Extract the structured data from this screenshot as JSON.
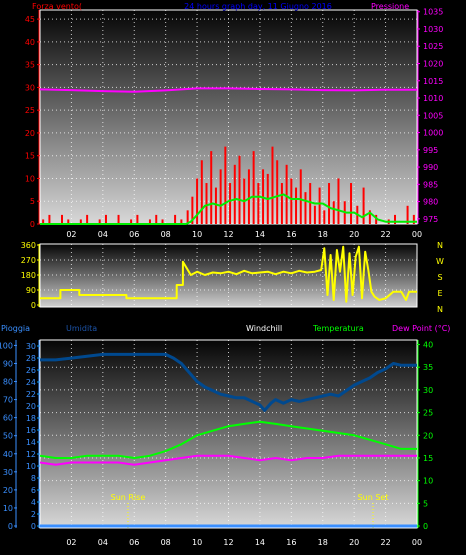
{
  "colors": {
    "wind": "#ff0000",
    "gust": "#ff0000",
    "wind_avg": "#00ee00",
    "pressure": "#ff00ff",
    "direction": "#ffff00",
    "rain": "#3a8fff",
    "humidity": "#00498f",
    "windchill": "#ffffff",
    "temperature": "#00ff00",
    "dewpoint": "#ff00ff",
    "time_label": "#ffff00",
    "grid": "#ffffff"
  },
  "chart_data": [
    {
      "type": "line",
      "title": "24 hours graph day, 11 Giugno 2016",
      "left_label": "Forza vento(",
      "right_label": "Pressione",
      "x_ticks": [
        "02",
        "04",
        "06",
        "08",
        "10",
        "12",
        "14",
        "16",
        "18",
        "20",
        "22",
        "00"
      ],
      "xlim": [
        0,
        24
      ],
      "y_left_ticks": [
        "0",
        "5",
        "10",
        "15",
        "20",
        "25",
        "30",
        "35",
        "40",
        "45"
      ],
      "y_left_lim": [
        0,
        47
      ],
      "y_right_ticks": [
        "975",
        "980",
        "985",
        "990",
        "995",
        "1000",
        "1005",
        "1010",
        "1015",
        "1020",
        "1025",
        "1030",
        "1035"
      ],
      "y_right_lim": [
        973.5,
        1035.5
      ],
      "series": [
        {
          "key": "gust",
          "axis": "left",
          "style": "bars",
          "x": [
            0.2,
            0.6,
            1.0,
            1.4,
            1.8,
            2.2,
            2.6,
            3.0,
            3.4,
            3.8,
            4.2,
            4.6,
            5.0,
            5.4,
            5.8,
            6.2,
            6.6,
            7.0,
            7.4,
            7.8,
            8.2,
            8.6,
            9.0,
            9.4,
            9.7,
            10.0,
            10.3,
            10.6,
            10.9,
            11.2,
            11.5,
            11.8,
            12.1,
            12.4,
            12.7,
            13.0,
            13.3,
            13.6,
            13.9,
            14.2,
            14.5,
            14.8,
            15.1,
            15.4,
            15.7,
            16.0,
            16.3,
            16.6,
            16.9,
            17.2,
            17.5,
            17.8,
            18.1,
            18.4,
            18.7,
            19.0,
            19.4,
            19.8,
            20.2,
            20.6,
            21.0,
            21.4,
            21.8,
            22.2,
            22.6,
            23.0,
            23.4,
            23.8
          ],
          "values": [
            1,
            2,
            0,
            2,
            1,
            0,
            1,
            2,
            0,
            1,
            2,
            0,
            2,
            0,
            1,
            2,
            0,
            1,
            2,
            1,
            0,
            2,
            1,
            3,
            6,
            10,
            14,
            9,
            16,
            8,
            12,
            17,
            9,
            13,
            15,
            10,
            12,
            16,
            9,
            12,
            11,
            17,
            14,
            9,
            13,
            10,
            8,
            12,
            7,
            9,
            4,
            8,
            3,
            9,
            5,
            10,
            5,
            9,
            4,
            8,
            3,
            2,
            0,
            1,
            2,
            0,
            4,
            2
          ]
        },
        {
          "key": "wind_avg",
          "axis": "left",
          "style": "line",
          "x": [
            0,
            9.3,
            9.6,
            10.0,
            10.5,
            11.0,
            11.5,
            12.0,
            12.5,
            13.0,
            13.5,
            14.0,
            14.5,
            15.0,
            15.5,
            16.0,
            16.5,
            17.0,
            17.5,
            18.0,
            18.5,
            19.0,
            19.5,
            20.0,
            20.5,
            21.0,
            21.5,
            22.0,
            24
          ],
          "values": [
            0,
            0,
            0.5,
            2,
            4,
            4.5,
            4,
            5,
            5.5,
            5,
            6,
            6,
            5.5,
            6,
            6.5,
            5.5,
            5.5,
            5,
            4.5,
            4.5,
            3.5,
            3,
            2.5,
            2.5,
            1.5,
            2.5,
            1,
            0.5,
            0.5
          ]
        },
        {
          "key": "pressure",
          "axis": "right",
          "style": "line",
          "x": [
            0,
            2,
            4,
            6,
            8,
            10,
            12,
            14,
            16,
            18,
            20,
            22,
            24
          ],
          "values": [
            1012.5,
            1012.3,
            1012.0,
            1011.8,
            1012.2,
            1012.8,
            1012.8,
            1012.6,
            1012.5,
            1012.3,
            1012.2,
            1012.4,
            1012.4
          ]
        }
      ]
    },
    {
      "type": "scatter",
      "title": "",
      "x_ticks": [
        "02",
        "04",
        "06",
        "08",
        "10",
        "12",
        "14",
        "16",
        "18",
        "20",
        "22",
        "00"
      ],
      "xlim": [
        0,
        24
      ],
      "y_ticks": [
        "0",
        "90",
        "180",
        "270",
        "360"
      ],
      "ylim": [
        0,
        360
      ],
      "compass": [
        "N",
        "W",
        "S",
        "E",
        "N"
      ],
      "series": [
        {
          "key": "direction",
          "x": [
            0,
            1.3,
            1.3,
            2.5,
            2.5,
            5.5,
            5.5,
            8.7,
            8.7,
            9.1,
            9.1,
            9.6,
            10.0,
            10.5,
            11.0,
            11.5,
            12.0,
            12.5,
            13.0,
            13.5,
            14.0,
            14.5,
            15.0,
            15.5,
            16.0,
            16.5,
            17.0,
            17.5,
            17.9,
            18.1,
            18.3,
            18.5,
            18.7,
            18.9,
            19.1,
            19.3,
            19.5,
            19.7,
            19.9,
            20.1,
            20.3,
            20.5,
            20.7,
            20.9,
            21.1,
            21.3,
            21.6,
            22.0,
            22.5,
            23.0,
            23.3,
            23.5,
            24
          ],
          "values": [
            40,
            40,
            90,
            90,
            60,
            60,
            40,
            40,
            120,
            120,
            260,
            180,
            200,
            180,
            195,
            190,
            200,
            185,
            205,
            190,
            195,
            200,
            185,
            200,
            190,
            205,
            195,
            200,
            210,
            340,
            60,
            300,
            30,
            330,
            200,
            350,
            20,
            310,
            60,
            290,
            350,
            40,
            320,
            210,
            80,
            50,
            30,
            40,
            80,
            80,
            30,
            80,
            80
          ]
        }
      ]
    },
    {
      "type": "line",
      "title": "",
      "labels": {
        "rain": "Pioggia",
        "humidity": "Umidita",
        "windchill": "Windchill",
        "temperature": "Temperatura",
        "dewpoint": "Dew Point (°C)"
      },
      "x_ticks": [
        "02",
        "04",
        "06",
        "08",
        "10",
        "12",
        "14",
        "16",
        "18",
        "20",
        "22",
        "00"
      ],
      "xlim": [
        0,
        24
      ],
      "y_rain_ticks": [
        "0",
        "2",
        "4",
        "6",
        "8",
        "10",
        "12",
        "14",
        "16",
        "18",
        "20",
        "22",
        "24",
        "26",
        "28",
        "30"
      ],
      "y_rain_lim": [
        0,
        31
      ],
      "y_humidity_ticks": [
        "0",
        "10",
        "20",
        "30",
        "40",
        "50",
        "60",
        "70",
        "80",
        "90",
        "100"
      ],
      "y_humidity_lim": [
        0,
        103
      ],
      "y_temp_ticks": [
        "0",
        "5",
        "10",
        "15",
        "20",
        "25",
        "30",
        "35",
        "40"
      ],
      "y_temp_lim": [
        0,
        41
      ],
      "sun_rise_label": "Sun Rise",
      "sun_set_label": "Sun Set",
      "sun_rise_x": 5.6,
      "sun_set_x": 21.2,
      "series": [
        {
          "key": "humidity",
          "axis": "humidity",
          "x": [
            0,
            1,
            2,
            3,
            4,
            5,
            6,
            7,
            8,
            8.5,
            9,
            9.5,
            10,
            10.5,
            11,
            11.5,
            12,
            12.5,
            13,
            13.5,
            14,
            14.3,
            14.7,
            15,
            15.5,
            16,
            16.5,
            17,
            17.5,
            18,
            18.5,
            19,
            19.5,
            20,
            20.5,
            21,
            21.5,
            22,
            22.5,
            23,
            24
          ],
          "values": [
            92,
            92,
            93,
            94,
            95,
            95,
            95,
            95,
            95,
            93,
            90,
            85,
            80,
            77,
            75,
            73,
            72,
            71,
            71,
            69,
            67,
            64,
            68,
            70,
            68,
            70,
            69,
            70,
            71,
            72,
            73,
            72,
            75,
            78,
            80,
            82,
            85,
            87,
            90,
            89,
            89
          ]
        },
        {
          "key": "temperature",
          "axis": "temp",
          "x": [
            0,
            1,
            2,
            3,
            4,
            5,
            6,
            7,
            8,
            9,
            10,
            11,
            12,
            13,
            14,
            15,
            16,
            17,
            18,
            19,
            20,
            21,
            22,
            23,
            24
          ],
          "values": [
            15.5,
            15,
            15,
            15.5,
            15.5,
            15.5,
            15,
            15.5,
            16.5,
            18,
            20,
            21,
            22,
            22.5,
            23,
            22.5,
            22,
            21.5,
            21,
            20.5,
            20,
            19,
            18,
            17,
            17
          ]
        },
        {
          "key": "dewpoint",
          "axis": "temp",
          "x": [
            0,
            1,
            2,
            3,
            4,
            5,
            6,
            7,
            8,
            9,
            10,
            11,
            12,
            13,
            14,
            15,
            16,
            17,
            18,
            19,
            20,
            21,
            22,
            23,
            24
          ],
          "values": [
            14,
            13.5,
            14,
            14,
            14,
            14,
            13.5,
            14,
            14.5,
            15,
            15.5,
            15.5,
            15.5,
            15,
            14.5,
            15,
            14.5,
            15,
            15,
            15.5,
            15.5,
            15.5,
            15.5,
            15.5,
            15.5
          ]
        },
        {
          "key": "rain",
          "axis": "rain",
          "x": [
            0,
            24
          ],
          "values": [
            0,
            0
          ]
        }
      ]
    }
  ]
}
